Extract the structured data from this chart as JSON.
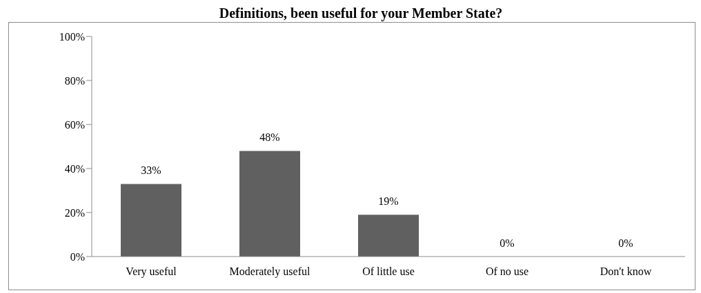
{
  "chart_data": {
    "type": "bar",
    "title": "Definitions, been useful for your Member State?",
    "categories": [
      "Very useful",
      "Moderately useful",
      "Of little use",
      "Of no use",
      "Don't know"
    ],
    "values": [
      33,
      48,
      19,
      0,
      0
    ],
    "value_labels": [
      "33%",
      "48%",
      "19%",
      "0%",
      "0%"
    ],
    "color": "#606060",
    "ylim": [
      0,
      100
    ],
    "yticks": [
      {
        "value": 0,
        "label": "0%"
      },
      {
        "value": 20,
        "label": "20%"
      },
      {
        "value": 40,
        "label": "40%"
      },
      {
        "value": 60,
        "label": "60%"
      },
      {
        "value": 80,
        "label": "80%"
      },
      {
        "value": 100,
        "label": "100%"
      }
    ],
    "grid": false,
    "legend": false
  }
}
